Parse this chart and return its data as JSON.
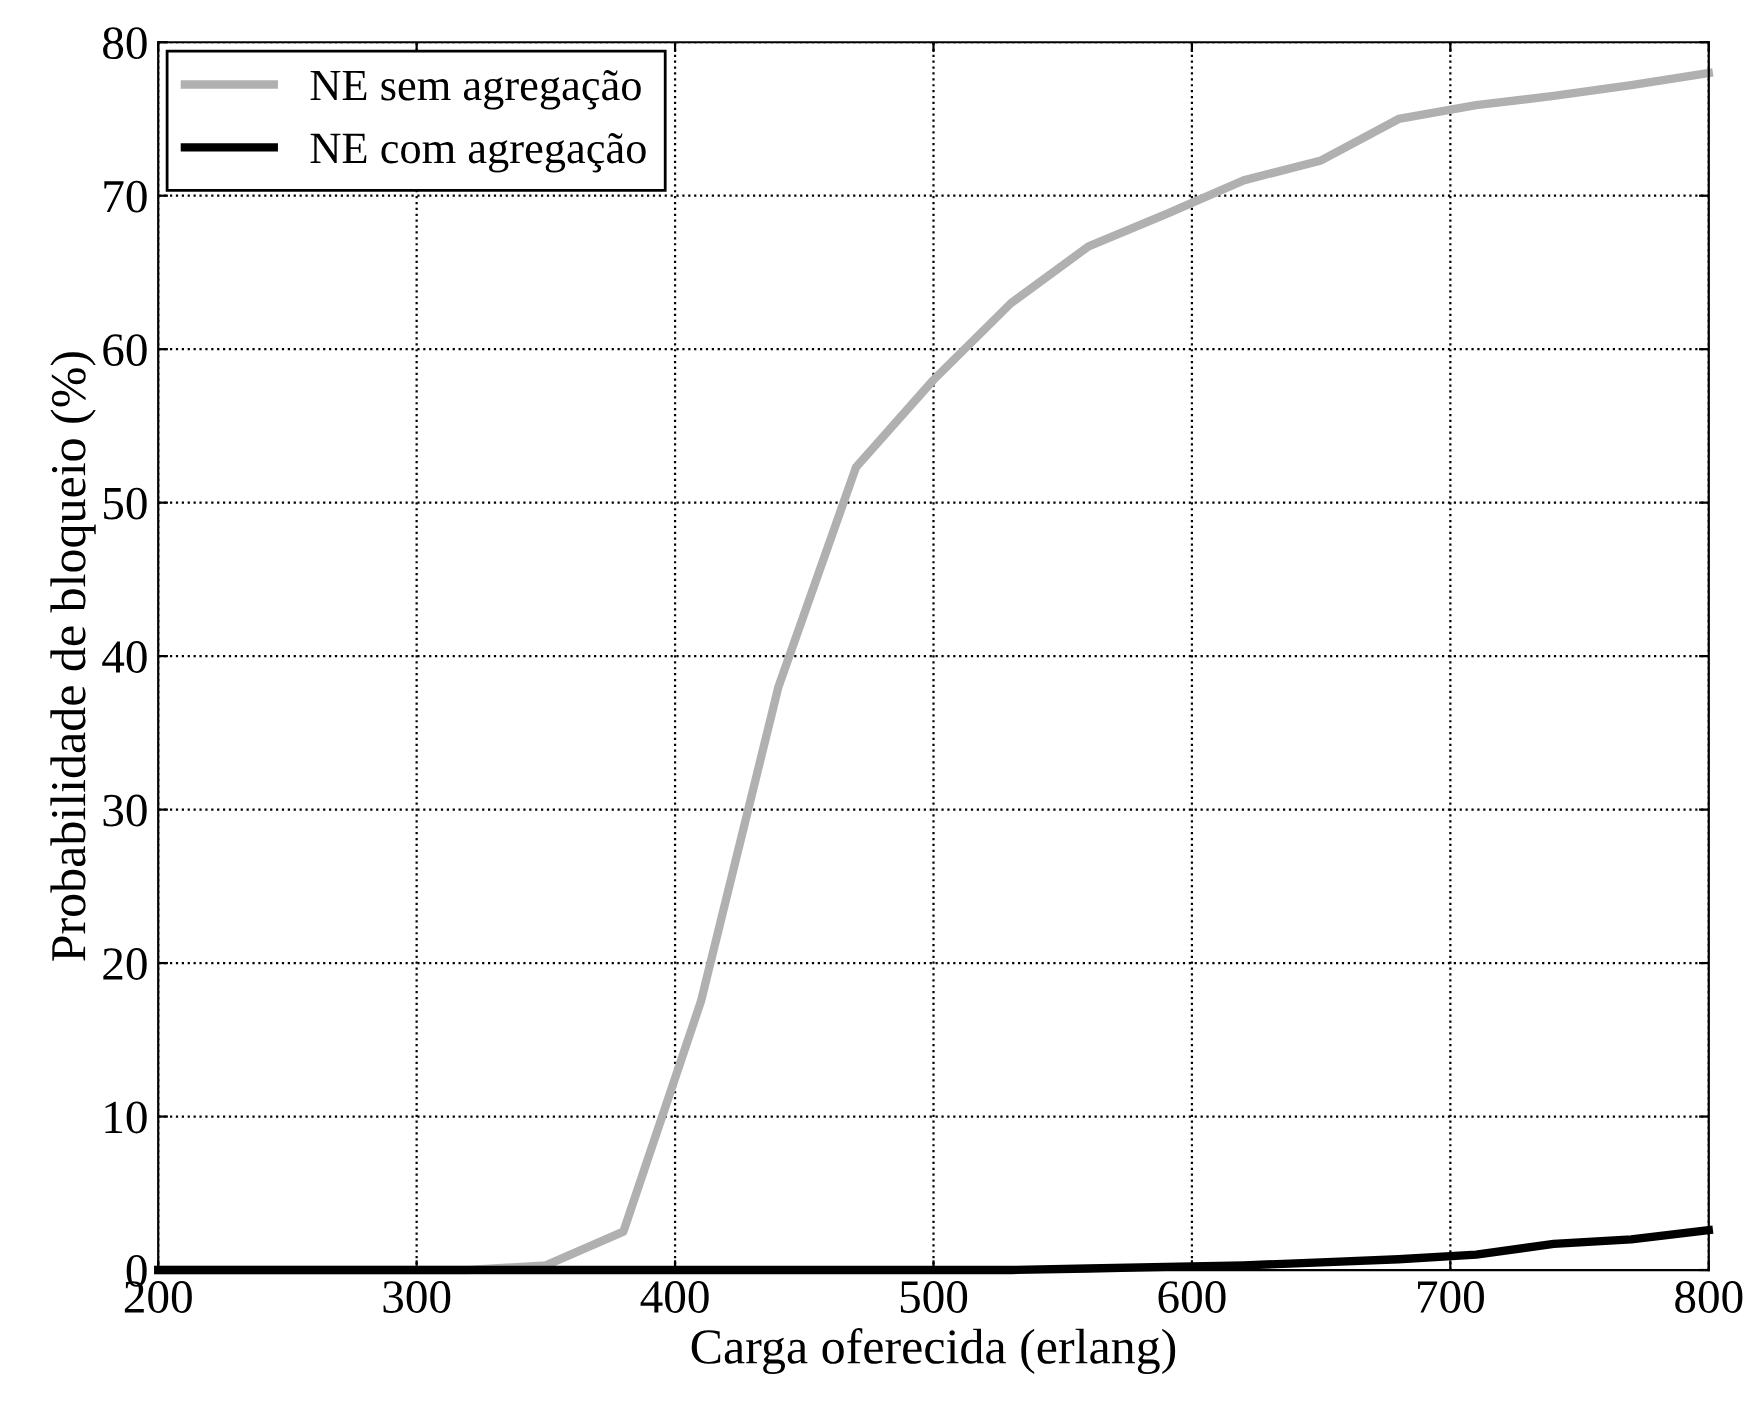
{
  "chart_data": {
    "type": "line",
    "xlabel": "Carga oferecida (erlang)",
    "ylabel": "Probabilidade de bloqueio (%)",
    "xlim": [
      200,
      800
    ],
    "ylim": [
      0,
      80
    ],
    "xticks": [
      200,
      300,
      400,
      500,
      600,
      700,
      800
    ],
    "yticks": [
      0,
      10,
      20,
      30,
      40,
      50,
      60,
      70,
      80
    ],
    "grid": true,
    "legend": "top left",
    "line_style": "solid",
    "series": [
      {
        "name": "NE sem agregação",
        "color": "#b0b0b0",
        "x": [
          200,
          230,
          260,
          290,
          320,
          350,
          380,
          410,
          440,
          470,
          500,
          530,
          560,
          590,
          620,
          650,
          680,
          710,
          740,
          770,
          800
        ],
        "values": [
          0,
          0,
          0,
          0,
          0,
          0.3,
          2.5,
          17.5,
          38,
          52.3,
          58,
          63,
          66.7,
          68.8,
          71,
          72.3,
          75,
          75.9,
          76.5,
          77.2,
          78
        ]
      },
      {
        "name": "NE com agregação",
        "color": "#000000",
        "x": [
          200,
          230,
          260,
          290,
          320,
          350,
          380,
          410,
          440,
          470,
          500,
          530,
          560,
          590,
          620,
          650,
          680,
          710,
          740,
          770,
          800
        ],
        "values": [
          0,
          0,
          0,
          0,
          0,
          0,
          0,
          0,
          0,
          0,
          0,
          0,
          0.1,
          0.2,
          0.3,
          0.5,
          0.7,
          1.0,
          1.7,
          2.0,
          2.6
        ]
      }
    ]
  }
}
